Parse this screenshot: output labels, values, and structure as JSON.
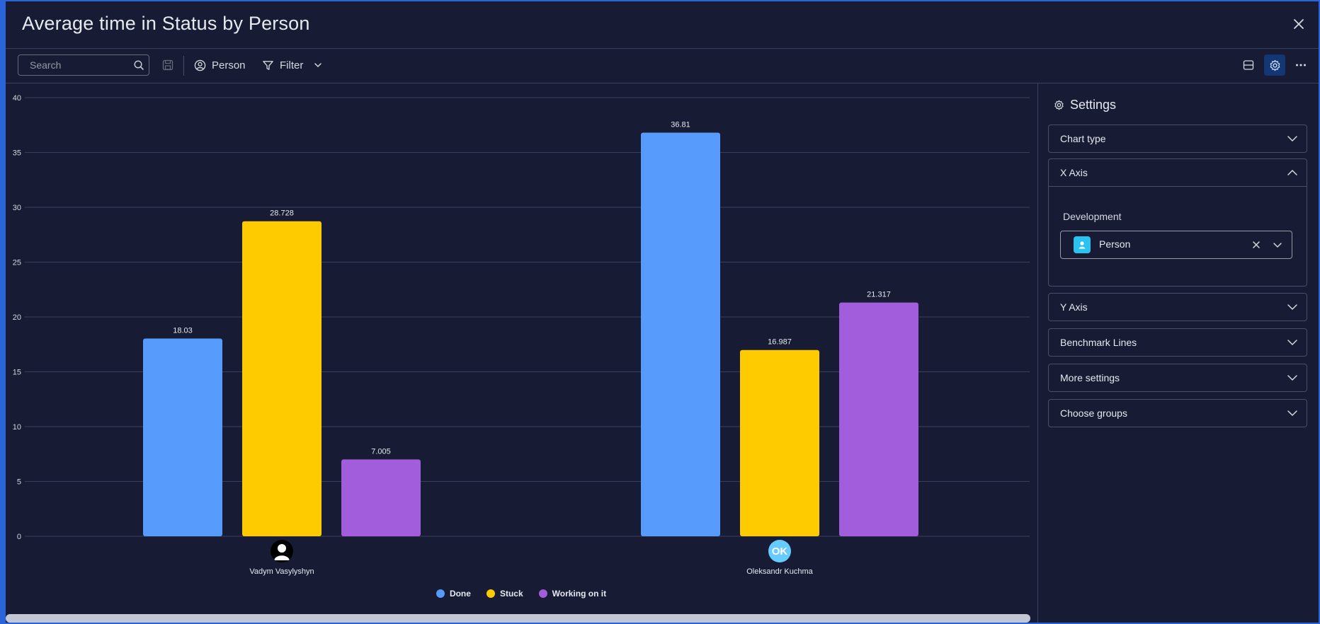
{
  "window": {
    "title": "Average time in Status by Person"
  },
  "toolbar": {
    "search_placeholder": "Search",
    "person_label": "Person",
    "filter_label": "Filter"
  },
  "chart_data": {
    "type": "bar",
    "categories": [
      "Vadym Vasylyshyn",
      "Oleksandr Kuchma"
    ],
    "series": [
      {
        "name": "Done",
        "color": "#579bfc",
        "values": [
          18.03,
          36.81
        ],
        "labels": [
          "18.03",
          "36.81"
        ]
      },
      {
        "name": "Stuck",
        "color": "#fdcb00",
        "values": [
          28.728,
          16.987
        ],
        "labels": [
          "28.728",
          "16.987"
        ]
      },
      {
        "name": "Working on it",
        "color": "#a25ddc",
        "values": [
          7.005,
          21.317
        ],
        "labels": [
          "7.005",
          "21.317"
        ]
      }
    ],
    "ylim": [
      0,
      40
    ],
    "yticks": [
      0,
      5,
      10,
      15,
      20,
      25,
      30,
      35,
      40
    ],
    "grid": true,
    "legend_position": "bottom-center",
    "avatars": [
      "user-icon",
      "OK"
    ]
  },
  "settings": {
    "title": "Settings",
    "sections": [
      {
        "label": "Chart type"
      },
      {
        "label": "X Axis",
        "open": true
      },
      {
        "label": "Y Axis"
      },
      {
        "label": "Benchmark Lines"
      },
      {
        "label": "More settings"
      },
      {
        "label": "Choose groups"
      }
    ],
    "x_axis": {
      "group_label": "Development",
      "selected": "Person"
    }
  }
}
